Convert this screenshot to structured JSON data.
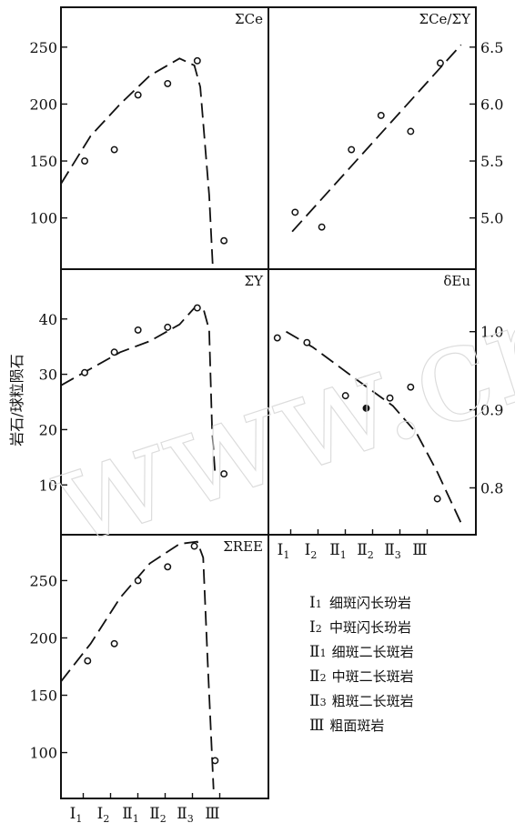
{
  "y_axis_label": "岩石/球粒陨石",
  "chart_data": [
    {
      "type": "line",
      "title": "ΣCe",
      "ylim": [
        55,
        285
      ],
      "y_ticks": [
        100,
        150,
        200,
        250
      ],
      "y_tick_labels": [
        "100",
        "150",
        "200",
        "250"
      ],
      "axis_side": "left",
      "trend_line": {
        "x": [
          0,
          1.0,
          2.0,
          3.0,
          4.0,
          4.5,
          4.7,
          5.0,
          5.12
        ],
        "y": [
          130,
          172,
          200,
          225,
          240,
          234,
          215,
          120,
          58
        ]
      },
      "series": [
        {
          "x": [
            0.8,
            1.8,
            2.6,
            3.6,
            4.6,
            5.5
          ],
          "y": [
            150,
            160,
            208,
            218,
            238,
            80
          ],
          "marker": [
            "open",
            "open",
            "open",
            "open",
            "open",
            "open"
          ]
        }
      ]
    },
    {
      "type": "line",
      "title": "ΣCe/ΣY",
      "ylim": [
        4.55,
        6.85
      ],
      "y_ticks": [
        5.0,
        5.5,
        6.0,
        6.5
      ],
      "y_tick_labels": [
        "5.0",
        "5.5",
        "6.0",
        "6.5"
      ],
      "axis_side": "right",
      "trend_line": {
        "x": [
          0.8,
          6.5
        ],
        "y": [
          4.88,
          6.52
        ]
      },
      "series": [
        {
          "x": [
            0.9,
            1.8,
            2.8,
            3.8,
            4.8,
            5.8
          ],
          "y": [
            5.05,
            4.92,
            5.6,
            5.9,
            5.76,
            6.36
          ],
          "marker": [
            "open",
            "open",
            "open",
            "open",
            "open",
            "open"
          ]
        }
      ]
    },
    {
      "type": "line",
      "title": "ΣY",
      "ylim": [
        1,
        49
      ],
      "y_ticks": [
        10,
        20,
        30,
        40
      ],
      "y_tick_labels": [
        "10",
        "20",
        "30",
        "40"
      ],
      "axis_side": "left",
      "trend_line": {
        "x": [
          0,
          1.0,
          2.0,
          3.0,
          4.0,
          4.5,
          4.8,
          5.0,
          5.1,
          5.2
        ],
        "y": [
          28,
          31,
          34,
          36,
          39,
          42,
          42,
          38,
          20,
          12
        ]
      },
      "series": [
        {
          "x": [
            0.8,
            1.8,
            2.6,
            3.6,
            4.6,
            5.5
          ],
          "y": [
            30.3,
            34,
            38,
            38.5,
            42,
            12
          ],
          "marker": [
            "open",
            "open",
            "open",
            "open",
            "open",
            "open"
          ]
        }
      ]
    },
    {
      "type": "line",
      "title": "δEu",
      "ylim": [
        0.74,
        1.08
      ],
      "y_ticks": [
        0.8,
        0.9,
        1.0
      ],
      "y_tick_labels": [
        "0.8",
        "0.9",
        "1.0"
      ],
      "axis_side": "right",
      "trend_line": {
        "x": [
          0.6,
          1.5,
          3.0,
          4.2,
          5.0,
          5.7,
          6.5
        ],
        "y": [
          1.0,
          0.98,
          0.938,
          0.905,
          0.87,
          0.82,
          0.755
        ]
      },
      "series": [
        {
          "x": [
            0.3,
            1.3,
            2.6,
            3.3,
            4.1,
            4.8,
            5.7
          ],
          "y": [
            0.992,
            0.986,
            0.918,
            0.902,
            0.915,
            0.929,
            0.786
          ],
          "marker": [
            "open",
            "open",
            "open",
            "filled",
            "open",
            "open",
            "open"
          ]
        }
      ]
    },
    {
      "type": "line",
      "title": "ΣREE",
      "ylim": [
        60,
        290
      ],
      "y_ticks": [
        100,
        150,
        200,
        250
      ],
      "y_tick_labels": [
        "100",
        "150",
        "200",
        "250"
      ],
      "axis_side": "left",
      "trend_line": {
        "x": [
          0,
          1.0,
          2.0,
          3.0,
          4.0,
          4.6,
          4.8,
          4.95,
          5.15
        ],
        "y": [
          162,
          195,
          235,
          265,
          282,
          284,
          270,
          180,
          68
        ]
      },
      "series": [
        {
          "x": [
            0.9,
            1.8,
            2.6,
            3.6,
            4.5,
            5.2
          ],
          "y": [
            180,
            195,
            250,
            262,
            280,
            93
          ],
          "marker": [
            "open",
            "open",
            "open",
            "open",
            "open",
            "open"
          ]
        }
      ]
    }
  ],
  "x_categories": [
    {
      "main": "Ⅰ",
      "sub": "1"
    },
    {
      "main": "Ⅰ",
      "sub": "2"
    },
    {
      "main": "Ⅱ",
      "sub": "1"
    },
    {
      "main": "Ⅱ",
      "sub": "2"
    },
    {
      "main": "Ⅱ",
      "sub": "3"
    },
    {
      "main": "Ⅲ",
      "sub": ""
    }
  ],
  "legend": [
    {
      "symbol": "Ⅰ",
      "sub": "1",
      "text": "细斑闪长玢岩"
    },
    {
      "symbol": "Ⅰ",
      "sub": "2",
      "text": "中斑闪长玢岩"
    },
    {
      "symbol": "Ⅱ",
      "sub": "1",
      "text": "细斑二长斑岩"
    },
    {
      "symbol": "Ⅱ",
      "sub": "2",
      "text": "中斑二长斑岩"
    },
    {
      "symbol": "Ⅱ",
      "sub": "3",
      "text": "粗斑二长斑岩"
    },
    {
      "symbol": "Ⅲ",
      "sub": "",
      "text": "粗面斑岩"
    }
  ],
  "watermark_text": "www.cn"
}
